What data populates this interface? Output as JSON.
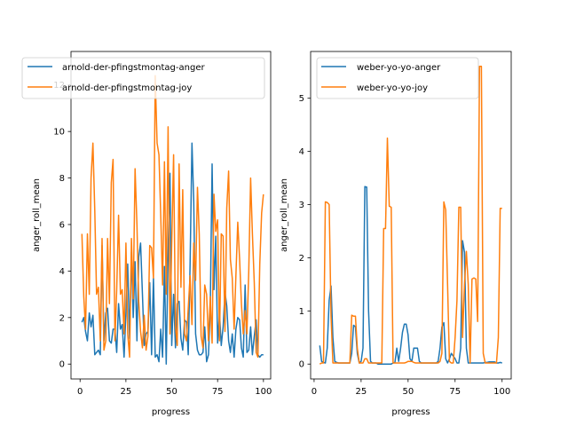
{
  "chart_data": [
    {
      "type": "line",
      "title": "",
      "xlabel": "progress",
      "ylabel": "anger_roll_mean",
      "xlim": [
        -4.95,
        103.95
      ],
      "ylim": [
        -0.64,
        13.44
      ],
      "xticks": [
        0,
        25,
        50,
        75,
        100
      ],
      "xtick_labels": [
        "0",
        "25",
        "50",
        "75",
        "100"
      ],
      "yticks": [
        0,
        2,
        4,
        6,
        8,
        10,
        12
      ],
      "ytick_labels": [
        "0",
        "2",
        "4",
        "6",
        "8",
        "10",
        "12"
      ],
      "legend_position": "upper-left",
      "grid": false,
      "series": [
        {
          "name": "arnold-der-pfingstmontag-anger",
          "color": "#1f77b4",
          "x": [
            1,
            2,
            3,
            4,
            5,
            6,
            7,
            8,
            9,
            10,
            11,
            12,
            13,
            14,
            15,
            16,
            17,
            18,
            19,
            20,
            21,
            22,
            23,
            24,
            25,
            26,
            27,
            28,
            29,
            30,
            31,
            32,
            33,
            34,
            35,
            36,
            37,
            38,
            39,
            40,
            41,
            42,
            43,
            44,
            45,
            46,
            47,
            48,
            49,
            50,
            51,
            52,
            53,
            54,
            55,
            56,
            57,
            58,
            59,
            60,
            61,
            62,
            63,
            64,
            65,
            66,
            67,
            68,
            69,
            70,
            71,
            72,
            73,
            74,
            75,
            76,
            77,
            78,
            79,
            80,
            81,
            82,
            83,
            84,
            85,
            86,
            87,
            88,
            89,
            90,
            91,
            92,
            93,
            94,
            95,
            96,
            97,
            98,
            99,
            100
          ],
          "values": [
            1.8,
            2.0,
            1.4,
            1.0,
            2.2,
            1.6,
            2.1,
            0.4,
            0.5,
            0.6,
            0.4,
            5.1,
            1.0,
            2.2,
            2.4,
            1.0,
            0.9,
            1.5,
            1.5,
            0.5,
            2.6,
            1.5,
            1.7,
            0.3,
            2.2,
            4.3,
            1.1,
            4.8,
            2.0,
            4.4,
            1.0,
            4.6,
            5.2,
            3.0,
            0.8,
            1.3,
            1.4,
            3.5,
            0.4,
            3.7,
            0.3,
            0.4,
            0.1,
            1.5,
            0.3,
            4.2,
            0.0,
            4.8,
            8.2,
            0.8,
            3.0,
            0.7,
            2.6,
            2.7,
            1.1,
            0.6,
            1.9,
            1.8,
            0.4,
            4.3,
            9.5,
            7.0,
            1.3,
            0.6,
            0.4,
            0.4,
            0.5,
            1.6,
            0.1,
            0.4,
            2.3,
            8.6,
            3.2,
            5.5,
            0.9,
            2.2,
            0.8,
            1.6,
            3.1,
            2.5,
            1.0,
            0.5,
            1.3,
            0.3,
            1.5,
            2.0,
            1.9,
            0.7,
            0.3,
            3.4,
            0.5,
            0.6,
            1.6,
            0.4,
            1.2,
            1.9,
            0.4,
            0.3,
            0.4,
            0.4
          ],
          "values_note": "approximate"
        },
        {
          "name": "arnold-der-pfingstmontag-joy",
          "color": "#ff7f0e",
          "x": [
            1,
            2,
            3,
            4,
            5,
            6,
            7,
            8,
            9,
            10,
            11,
            12,
            13,
            14,
            15,
            16,
            17,
            18,
            19,
            20,
            21,
            22,
            23,
            24,
            25,
            26,
            27,
            28,
            29,
            30,
            31,
            32,
            33,
            34,
            35,
            36,
            37,
            38,
            39,
            40,
            41,
            42,
            43,
            44,
            45,
            46,
            47,
            48,
            49,
            50,
            51,
            52,
            53,
            54,
            55,
            56,
            57,
            58,
            59,
            60,
            61,
            62,
            63,
            64,
            65,
            66,
            67,
            68,
            69,
            70,
            71,
            72,
            73,
            74,
            75,
            76,
            77,
            78,
            79,
            80,
            81,
            82,
            83,
            84,
            85,
            86,
            87,
            88,
            89,
            90,
            91,
            92,
            93,
            94,
            95,
            96,
            97,
            98,
            99,
            100
          ],
          "values": [
            5.6,
            2.9,
            1.5,
            5.6,
            3.0,
            8.0,
            9.5,
            6.6,
            3.0,
            3.3,
            1.0,
            5.4,
            0.6,
            1.0,
            5.4,
            2.6,
            7.8,
            8.8,
            1.0,
            3.2,
            6.4,
            3.0,
            3.2,
            1.3,
            5.2,
            1.3,
            0.3,
            5.4,
            2.8,
            8.4,
            6.0,
            2.7,
            1.4,
            0.7,
            2.1,
            0.6,
            1.2,
            5.1,
            5.0,
            3.7,
            12.4,
            9.5,
            9.0,
            6.4,
            3.4,
            8.7,
            3.0,
            10.2,
            1.3,
            5.2,
            9.0,
            1.6,
            0.8,
            8.6,
            3.3,
            7.5,
            1.3,
            1.0,
            2.4,
            3.8,
            1.7,
            5.2,
            3.6,
            7.6,
            5.6,
            1.2,
            0.7,
            3.4,
            3.0,
            1.0,
            2.9,
            0.9,
            7.3,
            5.7,
            6.2,
            1.0,
            5.6,
            5.5,
            1.4,
            6.7,
            8.3,
            4.5,
            3.7,
            1.5,
            3.8,
            6.1,
            4.5,
            2.6,
            1.3,
            2.3,
            1.3,
            4.0,
            8.0,
            5.6,
            3.5,
            0.5,
            0.3,
            4.3,
            6.5,
            7.3
          ],
          "values_note": "approximate"
        }
      ]
    },
    {
      "type": "line",
      "title": "",
      "xlabel": "progress",
      "ylabel": "anger_roll_mean",
      "xlim": [
        -1.85,
        104.85
      ],
      "ylim": [
        -0.28,
        5.88
      ],
      "xticks": [
        0,
        25,
        50,
        75,
        100
      ],
      "xtick_labels": [
        "0",
        "25",
        "50",
        "75",
        "100"
      ],
      "yticks": [
        0,
        1,
        2,
        3,
        4,
        5
      ],
      "ytick_labels": [
        "0",
        "1",
        "2",
        "3",
        "4",
        "5"
      ],
      "legend_position": "upper-left",
      "grid": false,
      "series": [
        {
          "name": "weber-yo-yo-anger",
          "color": "#1f77b4",
          "x": [
            3,
            4,
            5,
            6,
            7,
            8,
            9,
            10,
            11,
            12,
            13,
            14,
            15,
            16,
            17,
            18,
            19,
            20,
            21,
            22,
            23,
            24,
            25,
            26,
            27,
            28,
            29,
            30,
            31,
            32,
            33,
            34,
            35,
            36,
            37,
            38,
            39,
            40,
            41,
            42,
            43,
            44,
            45,
            46,
            47,
            48,
            49,
            50,
            51,
            52,
            53,
            54,
            55,
            56,
            57,
            58,
            59,
            60,
            61,
            62,
            63,
            64,
            65,
            66,
            67,
            68,
            69,
            70,
            71,
            72,
            73,
            74,
            75,
            76,
            77,
            78,
            79,
            80,
            81,
            82,
            83,
            84,
            85,
            86,
            87,
            88,
            89,
            90,
            91,
            92,
            93,
            94,
            95,
            96,
            97,
            98,
            99,
            100
          ],
          "values": [
            0.35,
            0.05,
            0.03,
            0.02,
            0.3,
            1.2,
            1.47,
            0.5,
            0.05,
            0.03,
            0.02,
            0.02,
            0.02,
            0.02,
            0.02,
            0.02,
            0.02,
            0.2,
            0.73,
            0.7,
            0.2,
            0.02,
            0.05,
            0.3,
            3.34,
            3.33,
            1.0,
            0.05,
            0.02,
            0.02,
            0.02,
            0.0,
            0.0,
            0.0,
            0.0,
            0.0,
            0.0,
            0.0,
            0.0,
            0.02,
            0.03,
            0.3,
            0.05,
            0.3,
            0.6,
            0.75,
            0.75,
            0.55,
            0.1,
            0.05,
            0.3,
            0.3,
            0.3,
            0.05,
            0.02,
            0.02,
            0.02,
            0.02,
            0.02,
            0.02,
            0.02,
            0.02,
            0.02,
            0.05,
            0.3,
            0.7,
            0.78,
            0.1,
            0.02,
            0.1,
            0.2,
            0.15,
            0.1,
            0.02,
            0.02,
            0.3,
            2.32,
            2.1,
            0.3,
            0.02,
            0.02,
            0.02,
            0.02,
            0.02,
            0.02,
            0.02,
            0.02,
            0.02,
            0.03,
            0.03,
            0.04,
            0.04,
            0.04,
            0.04,
            0.02,
            0.02,
            0.03,
            0.02
          ],
          "values_note": "approximate"
        },
        {
          "name": "weber-yo-yo-joy",
          "color": "#ff7f0e",
          "x": [
            3,
            4,
            5,
            6,
            7,
            8,
            9,
            10,
            11,
            12,
            13,
            14,
            15,
            16,
            17,
            18,
            19,
            20,
            21,
            22,
            23,
            24,
            25,
            26,
            27,
            28,
            29,
            30,
            31,
            32,
            33,
            34,
            35,
            36,
            37,
            38,
            39,
            40,
            41,
            42,
            43,
            44,
            45,
            46,
            47,
            48,
            49,
            50,
            51,
            52,
            53,
            54,
            55,
            56,
            57,
            58,
            59,
            60,
            61,
            62,
            63,
            64,
            65,
            66,
            67,
            68,
            69,
            70,
            71,
            72,
            73,
            74,
            75,
            76,
            77,
            78,
            79,
            80,
            81,
            82,
            83,
            84,
            85,
            86,
            87,
            88,
            89,
            90,
            91,
            92,
            93,
            94,
            95,
            96,
            97,
            98,
            99,
            100
          ],
          "values": [
            0.0,
            0.02,
            0.02,
            3.05,
            3.04,
            3.0,
            0.9,
            0.02,
            0.02,
            0.02,
            0.02,
            0.02,
            0.02,
            0.02,
            0.02,
            0.02,
            0.02,
            0.92,
            0.9,
            0.9,
            0.3,
            0.02,
            0.02,
            0.02,
            0.1,
            0.1,
            0.02,
            0.02,
            0.02,
            0.02,
            0.02,
            0.02,
            0.02,
            0.02,
            2.55,
            2.55,
            4.25,
            2.97,
            2.95,
            0.02,
            0.02,
            0.02,
            0.02,
            0.02,
            0.02,
            0.02,
            0.03,
            0.05,
            0.05,
            0.05,
            0.03,
            0.02,
            0.02,
            0.02,
            0.02,
            0.02,
            0.02,
            0.02,
            0.02,
            0.02,
            0.02,
            0.02,
            0.02,
            0.02,
            0.05,
            0.2,
            3.05,
            2.9,
            1.5,
            0.05,
            0.02,
            0.02,
            0.5,
            1.2,
            2.95,
            2.95,
            0.5,
            1.5,
            2.12,
            1.5,
            0.02,
            1.6,
            1.62,
            1.6,
            0.8,
            5.6,
            5.6,
            0.2,
            0.02,
            0.02,
            0.02,
            0.02,
            0.02,
            0.02,
            0.02,
            0.5,
            2.93,
            2.93
          ],
          "values_note": "approximate"
        }
      ]
    }
  ]
}
